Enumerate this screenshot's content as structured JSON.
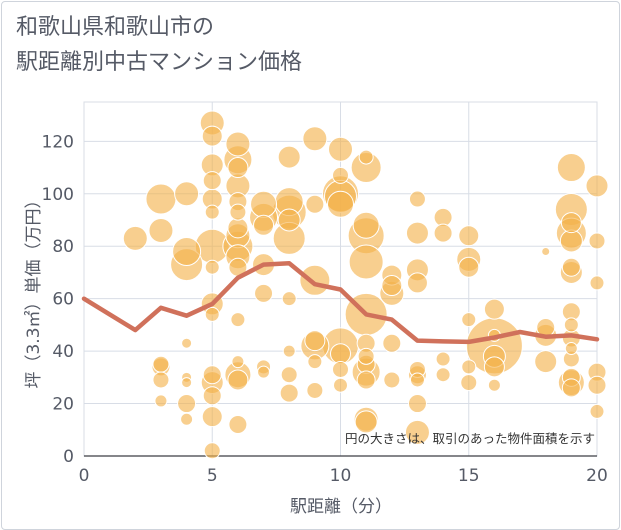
{
  "chart_data": {
    "type": "scatter",
    "title_lines": [
      "和歌山県和歌山市の",
      "駅距離別中古マンション価格"
    ],
    "xlabel": "駅距離（分）",
    "ylabel": "坪（3.3㎡）単価（万円）",
    "xlim": [
      0,
      20
    ],
    "ylim": [
      0,
      135
    ],
    "xticks": [
      0,
      5,
      10,
      15,
      20
    ],
    "yticks": [
      0,
      20,
      40,
      60,
      80,
      100,
      120
    ],
    "grid": true,
    "note": "円の大きさは、取引のあった物件面積を示す",
    "colors": {
      "bubble": "#f3b14a",
      "line": "#d0715b",
      "grid": "#d8dde6",
      "text": "#555a66"
    },
    "series": [
      {
        "type": "line",
        "x": [
          0,
          1,
          2,
          3,
          4,
          5,
          6,
          7,
          8,
          9,
          10,
          11,
          12,
          13,
          14,
          15,
          16,
          17,
          18,
          19,
          20
        ],
        "y": [
          60,
          54,
          48,
          56.5,
          53.5,
          58,
          68,
          73,
          73.5,
          65.5,
          63.5,
          54,
          52,
          44,
          43.7,
          43.5,
          45.2,
          47.3,
          45.5,
          46,
          44.5
        ]
      },
      {
        "type": "bubble",
        "points": [
          [
            2,
            83,
            12
          ],
          [
            3,
            98,
            15
          ],
          [
            3,
            86,
            12
          ],
          [
            3,
            35,
            8
          ],
          [
            3,
            34,
            9
          ],
          [
            3,
            29,
            8
          ],
          [
            3,
            21,
            6
          ],
          [
            4,
            100,
            12
          ],
          [
            4,
            78,
            14
          ],
          [
            4,
            73,
            16
          ],
          [
            4,
            43,
            5
          ],
          [
            4,
            30,
            5
          ],
          [
            4,
            28,
            5
          ],
          [
            4,
            20,
            9
          ],
          [
            4,
            14,
            6
          ],
          [
            5,
            127,
            12
          ],
          [
            5,
            122,
            10
          ],
          [
            5,
            111,
            11
          ],
          [
            5,
            105,
            9
          ],
          [
            5,
            98,
            10
          ],
          [
            5,
            93,
            7
          ],
          [
            5,
            80,
            17
          ],
          [
            5,
            72,
            7
          ],
          [
            5,
            58,
            11
          ],
          [
            5,
            54,
            7
          ],
          [
            5,
            31,
            9
          ],
          [
            5,
            28,
            11
          ],
          [
            5,
            23,
            9
          ],
          [
            5,
            15,
            10
          ],
          [
            5,
            2,
            8
          ],
          [
            6,
            119,
            12
          ],
          [
            6,
            113,
            14
          ],
          [
            6,
            110,
            10
          ],
          [
            6,
            103,
            12
          ],
          [
            6,
            97,
            9
          ],
          [
            6,
            93,
            8
          ],
          [
            6,
            87,
            10
          ],
          [
            6,
            84,
            12
          ],
          [
            6,
            80,
            15
          ],
          [
            6,
            76,
            12
          ],
          [
            6,
            72,
            9
          ],
          [
            6,
            52,
            7
          ],
          [
            6,
            36,
            6
          ],
          [
            6,
            31,
            13
          ],
          [
            6,
            29,
            10
          ],
          [
            6,
            12,
            9
          ],
          [
            7,
            96,
            13
          ],
          [
            7,
            91,
            14
          ],
          [
            7,
            88,
            10
          ],
          [
            7,
            73,
            11
          ],
          [
            7,
            62,
            9
          ],
          [
            7,
            34,
            7
          ],
          [
            7,
            32,
            6
          ],
          [
            8,
            114,
            11
          ],
          [
            8,
            97,
            14
          ],
          [
            8,
            93,
            17
          ],
          [
            8,
            90,
            11
          ],
          [
            8,
            83,
            16
          ],
          [
            8,
            60,
            7
          ],
          [
            8,
            40,
            6
          ],
          [
            8,
            31,
            8
          ],
          [
            8,
            24,
            9
          ],
          [
            9,
            121,
            12
          ],
          [
            9,
            96,
            9
          ],
          [
            9,
            67,
            15
          ],
          [
            9,
            44,
            10
          ],
          [
            9,
            42,
            14
          ],
          [
            9,
            36,
            7
          ],
          [
            9,
            25,
            8
          ],
          [
            10,
            117,
            12
          ],
          [
            10,
            107,
            8
          ],
          [
            10,
            100,
            18
          ],
          [
            10,
            99,
            16
          ],
          [
            10,
            96,
            13
          ],
          [
            10,
            42,
            18
          ],
          [
            10,
            39,
            10
          ],
          [
            10,
            33,
            8
          ],
          [
            10,
            27,
            7
          ],
          [
            11,
            114,
            7
          ],
          [
            11,
            110,
            15
          ],
          [
            11,
            88,
            13
          ],
          [
            11,
            84,
            18
          ],
          [
            11,
            74,
            17
          ],
          [
            11,
            54,
            21
          ],
          [
            11,
            43,
            9
          ],
          [
            11,
            38,
            8
          ],
          [
            11,
            35,
            9
          ],
          [
            11,
            32,
            14
          ],
          [
            11,
            29,
            9
          ],
          [
            11,
            14,
            12
          ],
          [
            11,
            13,
            11
          ],
          [
            12,
            69,
            10
          ],
          [
            12,
            65,
            10
          ],
          [
            12,
            62,
            12
          ],
          [
            12,
            43,
            9
          ],
          [
            12,
            29,
            8
          ],
          [
            13,
            98,
            8
          ],
          [
            13,
            85,
            11
          ],
          [
            13,
            71,
            11
          ],
          [
            13,
            66,
            10
          ],
          [
            13,
            33,
            8
          ],
          [
            13,
            31,
            9
          ],
          [
            13,
            29,
            7
          ],
          [
            13,
            20,
            9
          ],
          [
            13,
            9,
            12
          ],
          [
            14,
            91,
            9
          ],
          [
            14,
            85,
            9
          ],
          [
            14,
            37,
            7
          ],
          [
            14,
            31,
            7
          ],
          [
            15,
            84,
            10
          ],
          [
            15,
            75,
            12
          ],
          [
            15,
            72,
            10
          ],
          [
            15,
            52,
            7
          ],
          [
            15,
            34,
            7
          ],
          [
            15,
            28,
            8
          ],
          [
            16,
            56,
            10
          ],
          [
            16,
            46,
            6
          ],
          [
            16,
            42,
            28
          ],
          [
            16,
            38,
            11
          ],
          [
            16,
            34,
            10
          ],
          [
            16,
            27,
            6
          ],
          [
            18,
            78,
            4
          ],
          [
            18,
            49,
            9
          ],
          [
            18,
            46,
            11
          ],
          [
            18,
            36,
            11
          ],
          [
            19,
            110,
            14
          ],
          [
            19,
            94,
            16
          ],
          [
            19,
            89,
            10
          ],
          [
            19,
            85,
            15
          ],
          [
            19,
            82,
            11
          ],
          [
            19,
            72,
            9
          ],
          [
            19,
            70,
            11
          ],
          [
            19,
            55,
            9
          ],
          [
            19,
            50,
            7
          ],
          [
            19,
            45,
            9
          ],
          [
            19,
            41,
            6
          ],
          [
            19,
            37,
            8
          ],
          [
            19,
            30,
            9
          ],
          [
            19,
            28,
            13
          ],
          [
            19,
            26,
            9
          ],
          [
            20,
            103,
            11
          ],
          [
            20,
            82,
            8
          ],
          [
            20,
            66,
            7
          ],
          [
            20,
            32,
            9
          ],
          [
            20,
            27,
            9
          ],
          [
            20,
            17,
            7
          ]
        ]
      }
    ]
  }
}
